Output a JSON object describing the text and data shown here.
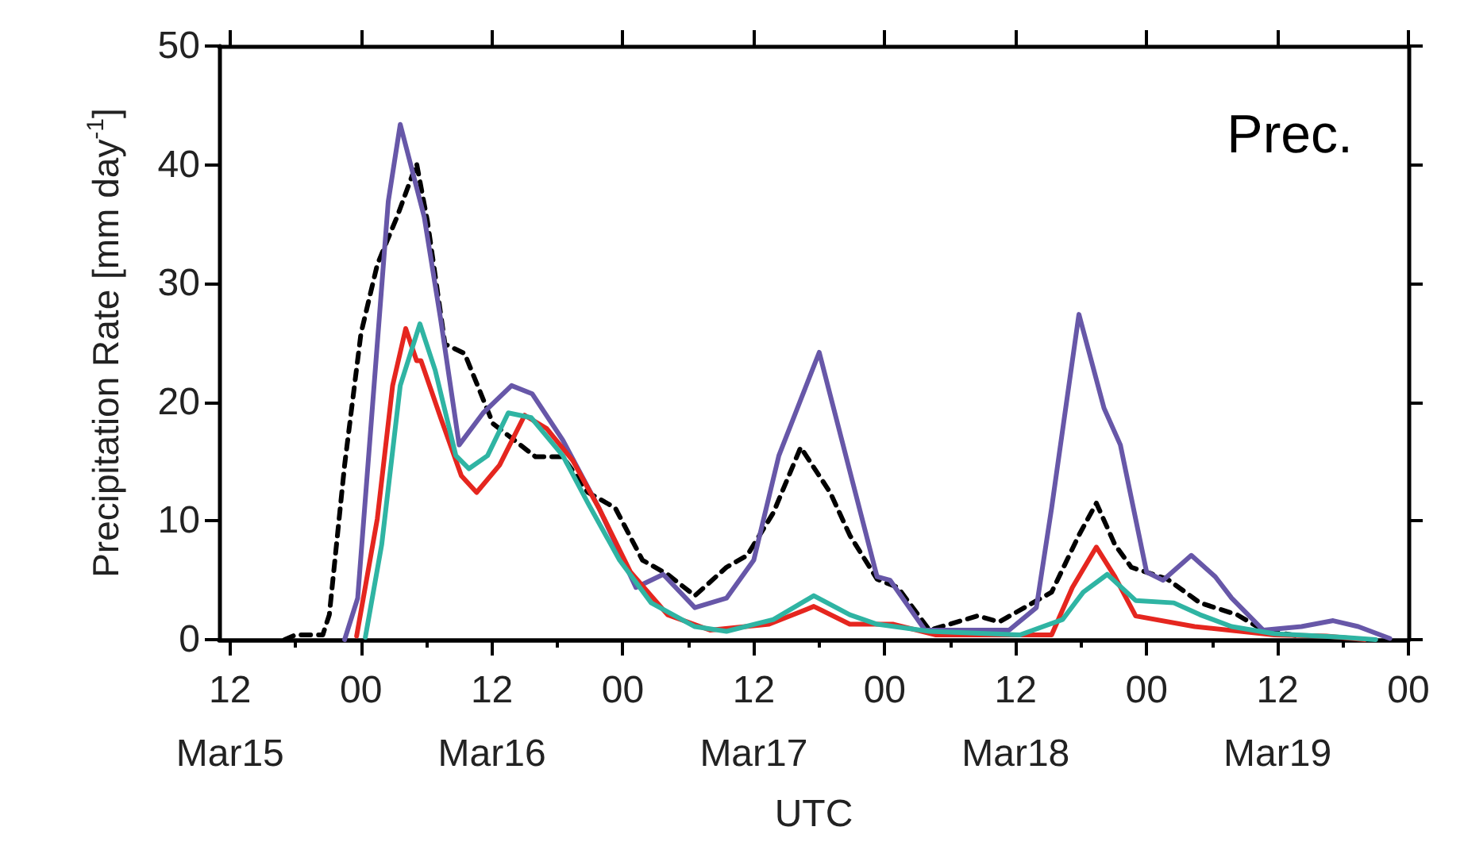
{
  "chart_data": {
    "type": "line",
    "ylabel": "Precipitation Rate [mm day$^{-1}$]",
    "xlabel": "UTC",
    "annotations": [
      "Prec."
    ],
    "xlim": [
      "--03-15T11:00",
      "--03-20T00:00"
    ],
    "xticks": [
      {
        "value": "--03-15T12:00",
        "label": "12\nMar15"
      },
      {
        "value": "--03-16T00:00",
        "label": "00"
      },
      {
        "value": "--03-16T12:00",
        "label": "12\nMar16"
      },
      {
        "value": "--03-17T00:00",
        "label": "00"
      },
      {
        "value": "--03-17T12:00",
        "label": "12\nMar17"
      },
      {
        "value": "--03-18T00:00",
        "label": "00"
      },
      {
        "value": "--03-18T12:00",
        "label": "12\nMar18"
      },
      {
        "value": "--03-19T00:00",
        "label": "00"
      },
      {
        "value": "--03-19T12:00",
        "label": "12\nMar19"
      },
      {
        "value": "--03-20T00:00",
        "label": "00"
      }
    ],
    "ylim": [
      0,
      50
    ],
    "yticks": [
      0,
      10,
      20,
      30,
      40,
      50
    ],
    "grid": false,
    "marker": "none",
    "series": [
      {
        "color": "#000000",
        "line_style": "dashed",
        "x": [
          "--03-15T17:00",
          "--03-15T18:00",
          "--03-15T20:30",
          "--03-15T21:06",
          "--03-15T22:30",
          "--03-16T00:00",
          "--03-16T01:30",
          "--03-16T03:18",
          "--03-16T05:06",
          "--03-16T06:06",
          "--03-16T07:42",
          "--03-16T09:30",
          "--03-16T12:06",
          "--03-16T16:00",
          "--03-16T18:30",
          "--03-16T20:48",
          "--03-16T23:18",
          "--03-17T01:48",
          "--03-17T04:06",
          "--03-17T06:36",
          "--03-17T09:30",
          "--03-17T11:24",
          "--03-17T13:48",
          "--03-17T16:18",
          "--03-17T19:00",
          "--03-17T20:48",
          "--03-17T23:18",
          "--03-18T01:12",
          "--03-18T04:06",
          "--03-18T08:30",
          "--03-18T10:30",
          "--03-18T15:18",
          "--03-18T17:48",
          "--03-18T19:24",
          "--03-18T21:06",
          "--03-18T22:36",
          "--03-19T01:54",
          "--03-19T04:54",
          "--03-19T08:18",
          "--03-19T10:42",
          "--03-19T14:00"
        ],
        "values": [
          0,
          0.4,
          0.4,
          2.1,
          14.7,
          25.8,
          31.6,
          35.6,
          40.1,
          35.2,
          24.9,
          24.1,
          18.2,
          15.4,
          15.4,
          12.4,
          11.1,
          6.7,
          5.5,
          3.7,
          6.1,
          7.1,
          10.7,
          16.2,
          12.4,
          8.8,
          5.1,
          4.4,
          0.8,
          2.0,
          1.5,
          4.0,
          8.8,
          11.5,
          8.0,
          6.1,
          5.1,
          3.1,
          2.1,
          0.8,
          0.3
        ]
      },
      {
        "color": "#6757a8",
        "line_style": "solid",
        "x": [
          "--03-15T22:30",
          "--03-15T23:42",
          "--03-16T01:00",
          "--03-16T02:30",
          "--03-16T03:36",
          "--03-16T05:48",
          "--03-16T07:18",
          "--03-16T09:00",
          "--03-16T11:12",
          "--03-16T13:48",
          "--03-16T15:42",
          "--03-16T18:30",
          "--03-16T21:48",
          "--03-17T01:12",
          "--03-17T03:42",
          "--03-17T06:36",
          "--03-17T09:30",
          "--03-17T12:00",
          "--03-17T14:18",
          "--03-17T18:00",
          "--03-17T20:48",
          "--03-17T23:18",
          "--03-18T00:30",
          "--03-18T03:42",
          "--03-18T11:24",
          "--03-18T13:54",
          "--03-18T15:18",
          "--03-18T17:48",
          "--03-18T20:06",
          "--03-18T21:36",
          "--03-19T00:00",
          "--03-19T01:30",
          "--03-19T04:06",
          "--03-19T06:18",
          "--03-19T07:48",
          "--03-19T10:42",
          "--03-19T14:12",
          "--03-19T17:06",
          "--03-19T19:24",
          "--03-19T22:18"
        ],
        "values": [
          0,
          3.5,
          19,
          36.9,
          43.4,
          35.6,
          27,
          16.4,
          19.1,
          21.4,
          20.7,
          16.8,
          11.1,
          4.4,
          5.5,
          2.7,
          3.5,
          6.7,
          15.5,
          24.2,
          14.2,
          5.3,
          5,
          0.8,
          0.8,
          2.7,
          11.1,
          27.4,
          19.5,
          16.4,
          5.7,
          5,
          7.1,
          5.3,
          3.5,
          0.8,
          1.1,
          1.6,
          1.1,
          0.1
        ]
      },
      {
        "color": "#e5261f",
        "line_style": "solid",
        "x": [
          "--03-15T23:36",
          "--03-16T01:30",
          "--03-16T02:54",
          "--03-16T04:06",
          "--03-16T05:06",
          "--03-16T05:30",
          "--03-16T07:18",
          "--03-16T09:12",
          "--03-16T10:36",
          "--03-16T12:42",
          "--03-16T15:00",
          "--03-16T17:00",
          "--03-16T19:24",
          "--03-16T21:48",
          "--03-17T00:42",
          "--03-17T04:06",
          "--03-17T08:00",
          "--03-17T13:24",
          "--03-17T17:30",
          "--03-17T20:48",
          "--03-18T00:48",
          "--03-18T04:42",
          "--03-18T15:18",
          "--03-18T17:12",
          "--03-18T19:24",
          "--03-18T21:06",
          "--03-18T23:00",
          "--03-19T04:24",
          "--03-19T11:42",
          "--03-19T16:30",
          "--03-19T20:00"
        ],
        "values": [
          0.3,
          10.2,
          21.4,
          26.2,
          23.5,
          23.5,
          18.7,
          13.8,
          12.4,
          14.7,
          18.9,
          17.8,
          15.1,
          11.1,
          5.7,
          2.1,
          0.8,
          1.3,
          2.8,
          1.3,
          1.3,
          0.4,
          0.4,
          4.4,
          7.8,
          5.3,
          2.0,
          1.1,
          0.4,
          0.3,
          0
        ]
      },
      {
        "color": "#2fb4a3",
        "line_style": "solid",
        "x": [
          "--03-16T00:24",
          "--03-16T01:54",
          "--03-16T03:36",
          "--03-16T05:24",
          "--03-16T06:48",
          "--03-16T08:42",
          "--03-16T09:54",
          "--03-16T11:36",
          "--03-16T13:30",
          "--03-16T15:36",
          "--03-16T18:30",
          "--03-16T20:48",
          "--03-16T23:42",
          "--03-17T02:36",
          "--03-17T06:36",
          "--03-17T09:30",
          "--03-17T13:48",
          "--03-17T17:30",
          "--03-17T20:48",
          "--03-17T23:18",
          "--03-18T04:06",
          "--03-18T12:24",
          "--03-18T16:18",
          "--03-18T18:12",
          "--03-18T20:24",
          "--03-18T23:00",
          "--03-19T02:30",
          "--03-19T04:54",
          "--03-19T07:48",
          "--03-19T11:42",
          "--03-19T18:00",
          "--03-19T21:00"
        ],
        "values": [
          0.2,
          8.0,
          21.4,
          26.6,
          22.7,
          15.5,
          14.4,
          15.5,
          19.1,
          18.7,
          15.5,
          11.5,
          6.7,
          3.1,
          1.1,
          0.7,
          1.7,
          3.7,
          2.1,
          1.3,
          0.7,
          0.4,
          1.7,
          4.0,
          5.5,
          3.3,
          3.1,
          2.1,
          1.1,
          0.5,
          0.2,
          0
        ]
      }
    ]
  }
}
